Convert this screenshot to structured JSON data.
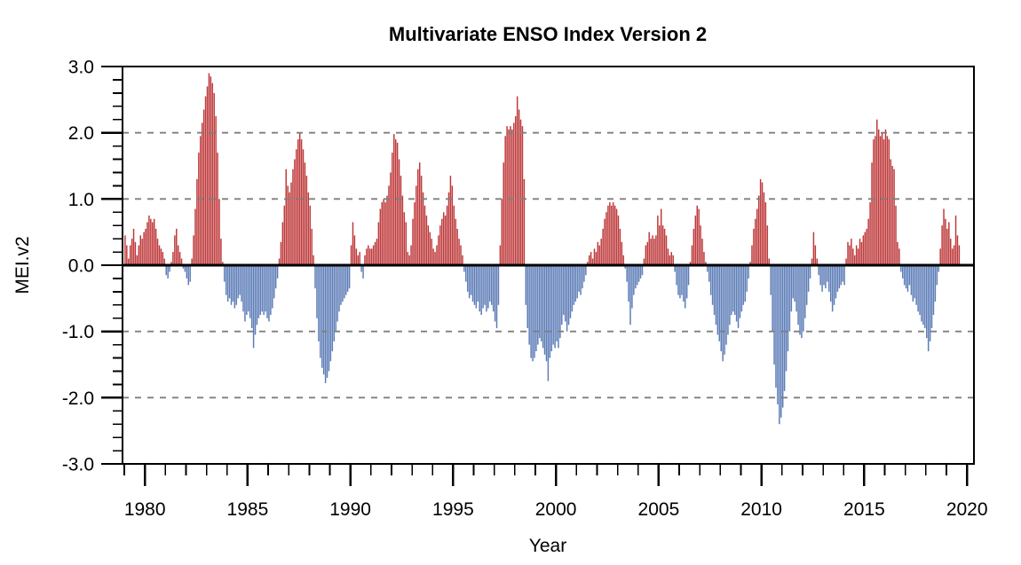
{
  "page": {
    "background_color": "#ffffff"
  },
  "chart_data": {
    "type": "bar",
    "title": "Multivariate ENSO Index Version 2",
    "xlabel": "Year",
    "ylabel": "MEI.v2",
    "y_axis": {
      "range": [
        -3.0,
        3.0
      ],
      "major_tick_values": [
        -3,
        -2,
        -1,
        0,
        1,
        2,
        3
      ],
      "major_tick_labels": [
        "-3.0",
        "-2.0",
        "-1.0",
        "0.0",
        "1.0",
        "2.0",
        "3.0"
      ],
      "minor_tick_step": 0.2
    },
    "x_axis": {
      "range": [
        1978.9,
        2020.35
      ],
      "major_tick_values": [
        1980,
        1985,
        1990,
        1995,
        2000,
        2005,
        2010,
        2015,
        2020
      ],
      "major_tick_labels": [
        "1980",
        "1985",
        "1990",
        "1995",
        "2000",
        "2005",
        "2010",
        "2015",
        "2020"
      ],
      "minor_tick_step_years": 1,
      "first_minor_tick": 1979,
      "last_minor_tick": 2020
    },
    "gridlines": {
      "y_values": [
        -2,
        -1,
        1,
        2
      ],
      "style": "dashed",
      "color": "#7f7f7f"
    },
    "zero_line": {
      "value": 0,
      "color": "#000000"
    },
    "legend": "none",
    "positive_color": "#be393b",
    "negative_color": "#5c7cb7",
    "frequency": "monthly",
    "start_year": 1979,
    "end_point": "mid-2019",
    "values_by_year": {
      "1979": [
        0.45,
        0.3,
        0.1,
        0.3,
        0.4,
        0.55,
        0.35,
        0.15,
        0.3,
        0.45,
        0.4,
        0.5
      ],
      "1980": [
        0.55,
        0.65,
        0.75,
        0.7,
        0.65,
        0.7,
        0.55,
        0.4,
        0.3,
        0.25,
        0.2,
        0.1
      ],
      "1981": [
        -0.15,
        -0.2,
        -0.1,
        0.05,
        0.2,
        0.45,
        0.55,
        0.3,
        0.2,
        0.1,
        -0.05,
        -0.1
      ],
      "1982": [
        -0.2,
        -0.3,
        -0.25,
        0.1,
        0.45,
        0.85,
        1.3,
        1.7,
        1.95,
        2.15,
        2.35,
        2.55
      ],
      "1983": [
        2.7,
        2.9,
        2.85,
        2.75,
        2.6,
        2.25,
        1.7,
        1.0,
        0.4,
        0.05,
        -0.25,
        -0.45
      ],
      "1984": [
        -0.55,
        -0.5,
        -0.6,
        -0.55,
        -0.65,
        -0.6,
        -0.5,
        -0.45,
        -0.55,
        -0.7,
        -0.85,
        -0.75
      ],
      "1985": [
        -0.7,
        -0.8,
        -0.95,
        -1.25,
        -1.05,
        -0.9,
        -0.8,
        -0.75,
        -0.7,
        -0.75,
        -0.7,
        -0.8
      ],
      "1986": [
        -0.85,
        -0.75,
        -0.65,
        -0.5,
        -0.35,
        -0.2,
        0.1,
        0.35,
        0.65,
        0.9,
        1.45,
        1.2
      ],
      "1987": [
        1.1,
        1.25,
        1.45,
        1.6,
        1.75,
        1.9,
        2.0,
        1.9,
        1.75,
        1.55,
        1.35,
        1.1
      ],
      "1988": [
        0.9,
        0.55,
        0.15,
        -0.35,
        -0.8,
        -1.15,
        -1.4,
        -1.55,
        -1.65,
        -1.78,
        -1.7,
        -1.6
      ],
      "1989": [
        -1.45,
        -1.3,
        -1.15,
        -1.0,
        -0.85,
        -0.7,
        -0.6,
        -0.55,
        -0.5,
        -0.45,
        -0.4,
        -0.35
      ],
      "1990": [
        0.3,
        0.65,
        0.45,
        0.25,
        0.15,
        0.2,
        -0.1,
        -0.2,
        0.15,
        0.25,
        0.3,
        0.25
      ],
      "1991": [
        0.25,
        0.3,
        0.35,
        0.4,
        0.65,
        0.85,
        0.95,
        1.0,
        0.95,
        1.05,
        1.2,
        1.4
      ],
      "1992": [
        1.7,
        1.98,
        1.9,
        1.85,
        1.6,
        1.35,
        1.05,
        0.8,
        0.65,
        0.2,
        0.15,
        0.3
      ],
      "1993": [
        0.7,
        0.95,
        1.2,
        1.45,
        1.55,
        1.35,
        1.1,
        0.9,
        0.75,
        0.6,
        0.5,
        0.4
      ],
      "1994": [
        0.25,
        0.2,
        0.3,
        0.45,
        0.6,
        0.7,
        0.8,
        0.75,
        0.9,
        1.1,
        1.35,
        1.2
      ],
      "1995": [
        0.9,
        0.7,
        0.55,
        0.4,
        0.3,
        0.15,
        -0.1,
        -0.25,
        -0.4,
        -0.5,
        -0.45,
        -0.55
      ],
      "1996": [
        -0.6,
        -0.65,
        -0.55,
        -0.7,
        -0.75,
        -0.65,
        -0.6,
        -0.7,
        -0.65,
        -0.55,
        -0.6,
        -0.7
      ],
      "1997": [
        -0.85,
        -0.95,
        -0.6,
        0.3,
        1.0,
        1.55,
        1.95,
        2.1,
        2.05,
        2.1,
        2.05,
        2.15
      ],
      "1998": [
        2.25,
        2.55,
        2.35,
        2.2,
        2.1,
        1.3,
        -0.6,
        -0.95,
        -1.2,
        -1.4,
        -1.45,
        -1.4
      ],
      "1999": [
        -1.3,
        -1.2,
        -1.1,
        -1.15,
        -1.25,
        -1.35,
        -1.45,
        -1.75,
        -1.4,
        -1.3,
        -1.2,
        -1.25
      ],
      "2000": [
        -1.15,
        -1.25,
        -1.1,
        -0.9,
        -0.75,
        -0.85,
        -1.0,
        -0.9,
        -0.8,
        -0.7,
        -0.6,
        -0.55
      ],
      "2001": [
        -0.5,
        -0.4,
        -0.45,
        -0.35,
        -0.25,
        -0.15,
        0.05,
        0.15,
        0.2,
        0.1,
        0.25,
        0.2
      ],
      "2002": [
        0.35,
        0.3,
        0.4,
        0.55,
        0.7,
        0.8,
        0.9,
        0.95,
        0.9,
        0.95,
        0.9,
        0.85
      ],
      "2003": [
        0.75,
        0.55,
        0.35,
        0.15,
        -0.05,
        -0.25,
        -0.55,
        -0.9,
        -0.65,
        -0.45,
        -0.35,
        -0.3
      ],
      "2004": [
        -0.25,
        -0.2,
        -0.15,
        0.1,
        0.3,
        0.35,
        0.5,
        0.4,
        0.45,
        0.4,
        0.45,
        0.75
      ],
      "2005": [
        0.6,
        0.85,
        0.6,
        0.55,
        0.45,
        0.25,
        0.15,
        0.2,
        0.15,
        -0.1,
        -0.3,
        -0.45
      ],
      "2006": [
        -0.5,
        -0.45,
        -0.55,
        -0.65,
        -0.5,
        -0.3,
        0.05,
        0.3,
        0.55,
        0.75,
        0.9,
        0.85
      ],
      "2007": [
        0.6,
        0.4,
        0.2,
        0.05,
        -0.1,
        -0.25,
        -0.45,
        -0.6,
        -0.75,
        -0.9,
        -1.05,
        -1.15
      ],
      "2008": [
        -1.3,
        -1.45,
        -1.35,
        -1.2,
        -1.05,
        -0.9,
        -0.75,
        -0.7,
        -0.75,
        -0.85,
        -0.95,
        -0.8
      ],
      "2009": [
        -0.7,
        -0.6,
        -0.55,
        -0.4,
        -0.2,
        0.05,
        0.3,
        0.55,
        0.7,
        0.85,
        1.05,
        1.3
      ],
      "2010": [
        1.25,
        1.1,
        0.95,
        0.6,
        0.1,
        -0.45,
        -1.0,
        -1.5,
        -1.85,
        -2.1,
        -2.4,
        -2.3
      ],
      "2011": [
        -2.15,
        -1.9,
        -1.6,
        -1.3,
        -1.0,
        -0.7,
        -0.5,
        -0.55,
        -0.7,
        -0.9,
        -1.05,
        -1.1
      ],
      "2012": [
        -1.0,
        -0.8,
        -0.6,
        -0.4,
        -0.2,
        0.1,
        0.5,
        0.3,
        0.1,
        -0.15,
        -0.3,
        -0.4
      ],
      "2013": [
        -0.3,
        -0.35,
        -0.25,
        -0.4,
        -0.55,
        -0.7,
        -0.6,
        -0.5,
        -0.4,
        -0.35,
        -0.3,
        -0.25
      ],
      "2014": [
        -0.3,
        0.1,
        0.35,
        0.3,
        0.4,
        0.25,
        0.15,
        0.3,
        0.25,
        0.4,
        0.35,
        0.45
      ],
      "2015": [
        0.5,
        0.55,
        0.7,
        0.95,
        1.55,
        1.9,
        1.95,
        2.2,
        2.05,
        1.95,
        2.0,
        1.9
      ],
      "2016": [
        2.05,
        1.95,
        1.9,
        1.6,
        1.5,
        1.45,
        0.9,
        0.35,
        0.25,
        -0.1,
        -0.2,
        -0.3
      ],
      "2017": [
        -0.35,
        -0.4,
        -0.3,
        -0.45,
        -0.55,
        -0.5,
        -0.6,
        -0.7,
        -0.75,
        -0.85,
        -0.9,
        -0.95
      ],
      "2018": [
        -1.1,
        -1.3,
        -1.15,
        -0.95,
        -0.75,
        -0.55,
        -0.3,
        -0.1,
        0.25,
        0.6,
        0.85,
        0.7
      ],
      "2019": [
        0.55,
        0.65,
        0.4,
        0.25,
        0.3,
        0.75,
        0.45,
        0.3
      ]
    }
  }
}
